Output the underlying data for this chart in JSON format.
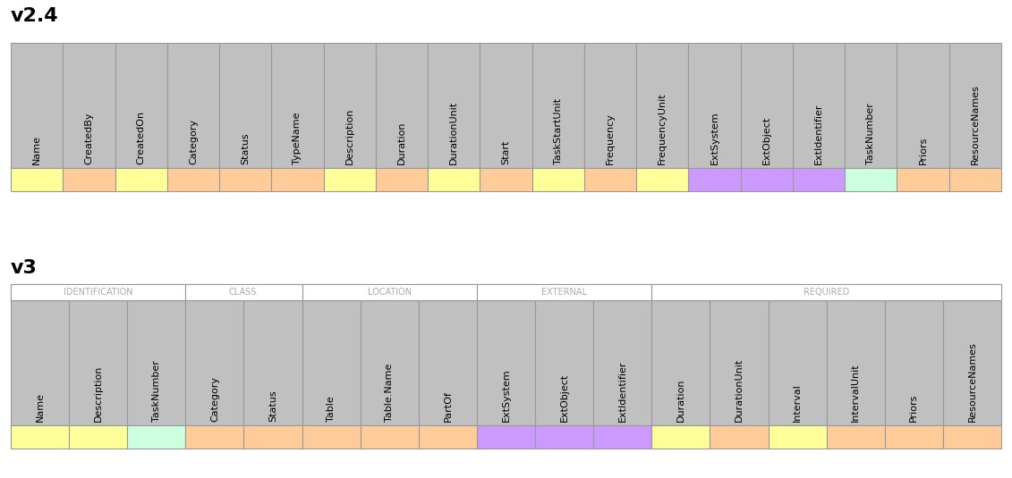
{
  "v24_title": "v2.4",
  "v3_title": "v3",
  "v24_fields": [
    {
      "name": "Name",
      "color": "#FFFF99"
    },
    {
      "name": "CreatedBy",
      "color": "#FFCC99"
    },
    {
      "name": "CreatedOn",
      "color": "#FFFF99"
    },
    {
      "name": "Category",
      "color": "#FFCC99"
    },
    {
      "name": "Status",
      "color": "#FFCC99"
    },
    {
      "name": "TypeName",
      "color": "#FFCC99"
    },
    {
      "name": "Description",
      "color": "#FFFF99"
    },
    {
      "name": "Duration",
      "color": "#FFCC99"
    },
    {
      "name": "DurationUnit",
      "color": "#FFFF99"
    },
    {
      "name": "Start",
      "color": "#FFCC99"
    },
    {
      "name": "TaskStartUnit",
      "color": "#FFFF99"
    },
    {
      "name": "Frequency",
      "color": "#FFCC99"
    },
    {
      "name": "FrequencyUnit",
      "color": "#FFFF99"
    },
    {
      "name": "ExtSystem",
      "color": "#CC99FF"
    },
    {
      "name": "ExtObject",
      "color": "#CC99FF"
    },
    {
      "name": "ExtIdentifier",
      "color": "#CC99FF"
    },
    {
      "name": "TaskNumber",
      "color": "#CCFFDD"
    },
    {
      "name": "Priors",
      "color": "#FFCC99"
    },
    {
      "name": "ResourceNames",
      "color": "#FFCC99"
    }
  ],
  "v3_groups": [
    {
      "name": "IDENTIFICATION",
      "span": 3
    },
    {
      "name": "CLASS.",
      "span": 2
    },
    {
      "name": "LOCATION",
      "span": 3
    },
    {
      "name": "EXTERNAL",
      "span": 3
    },
    {
      "name": "REQUIRED",
      "span": 6
    }
  ],
  "v3_fields": [
    {
      "name": "Name",
      "color": "#FFFF99"
    },
    {
      "name": "Description",
      "color": "#FFFF99"
    },
    {
      "name": "TaskNumber",
      "color": "#CCFFDD"
    },
    {
      "name": "Category",
      "color": "#FFCC99"
    },
    {
      "name": "Status",
      "color": "#FFCC99"
    },
    {
      "name": "Table",
      "color": "#FFCC99"
    },
    {
      "name": "Table.Name",
      "color": "#FFCC99"
    },
    {
      "name": "PartOf",
      "color": "#FFCC99"
    },
    {
      "name": "ExtSystem",
      "color": "#CC99FF"
    },
    {
      "name": "ExtObject",
      "color": "#CC99FF"
    },
    {
      "name": "ExtIdentifier",
      "color": "#CC99FF"
    },
    {
      "name": "Duration",
      "color": "#FFFF99"
    },
    {
      "name": "DurationUnit",
      "color": "#FFCC99"
    },
    {
      "name": "Interval",
      "color": "#FFFF99"
    },
    {
      "name": "IntervalUnit",
      "color": "#FFCC99"
    },
    {
      "name": "Priors",
      "color": "#FFCC99"
    },
    {
      "name": "ResourceNames",
      "color": "#FFCC99"
    }
  ],
  "header_bg": "#C0C0C0",
  "border_color": "#999999",
  "group_text_color": "#AAAAAA",
  "fig_width": 11.31,
  "fig_height": 5.35,
  "dpi": 100,
  "title_fontsize": 16,
  "label_fontsize": 8,
  "group_fontsize": 7
}
